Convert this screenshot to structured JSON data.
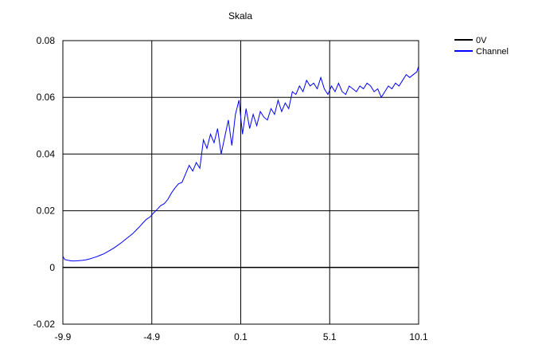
{
  "chart_data": {
    "type": "line",
    "title": "Skala",
    "xlabel": "",
    "ylabel": "",
    "xlim": [
      -9.9,
      10.1
    ],
    "ylim": [
      -0.02,
      0.08
    ],
    "x_ticks": [
      "-9.9",
      "-4.9",
      "0.1",
      "5.1",
      "10.1"
    ],
    "x_tick_values": [
      -9.9,
      -4.9,
      0.1,
      5.1,
      10.1
    ],
    "y_ticks": [
      "-0.02",
      "0",
      "0.02",
      "0.04",
      "0.06",
      "0.08"
    ],
    "y_tick_values": [
      -0.02,
      0,
      0.02,
      0.04,
      0.06,
      0.08
    ],
    "grid": true,
    "legend_position": "top-right",
    "series": [
      {
        "name": "0V",
        "color": "#000000",
        "x": [
          -9.9,
          10.1
        ],
        "y": [
          0,
          0
        ]
      },
      {
        "name": "Channel",
        "color": "#0000ff",
        "x": [
          -9.9,
          -9.8,
          -9.6,
          -9.4,
          -9.2,
          -9.0,
          -8.8,
          -8.6,
          -8.4,
          -8.2,
          -8.0,
          -7.8,
          -7.6,
          -7.4,
          -7.2,
          -7.0,
          -6.8,
          -6.6,
          -6.4,
          -6.2,
          -6.0,
          -5.8,
          -5.6,
          -5.4,
          -5.2,
          -5.0,
          -4.8,
          -4.6,
          -4.4,
          -4.2,
          -4.0,
          -3.8,
          -3.6,
          -3.4,
          -3.2,
          -3.0,
          -2.8,
          -2.6,
          -2.4,
          -2.2,
          -2.0,
          -1.8,
          -1.6,
          -1.4,
          -1.2,
          -1.0,
          -0.8,
          -0.6,
          -0.4,
          -0.2,
          0.0,
          0.2,
          0.4,
          0.6,
          0.8,
          1.0,
          1.2,
          1.4,
          1.6,
          1.8,
          2.0,
          2.2,
          2.4,
          2.6,
          2.8,
          3.0,
          3.2,
          3.4,
          3.6,
          3.8,
          4.0,
          4.2,
          4.4,
          4.6,
          4.8,
          5.0,
          5.2,
          5.4,
          5.6,
          5.8,
          6.0,
          6.2,
          6.4,
          6.6,
          6.8,
          7.0,
          7.2,
          7.4,
          7.6,
          7.8,
          8.0,
          8.2,
          8.4,
          8.6,
          8.8,
          9.0,
          9.2,
          9.4,
          9.6,
          9.8,
          10.0,
          10.1
        ],
        "y": [
          0.004,
          0.0028,
          0.0025,
          0.0023,
          0.0023,
          0.0024,
          0.0025,
          0.0027,
          0.003,
          0.0034,
          0.0038,
          0.0043,
          0.0048,
          0.0055,
          0.0062,
          0.007,
          0.0079,
          0.0088,
          0.0098,
          0.0108,
          0.0118,
          0.013,
          0.0143,
          0.0157,
          0.017,
          0.0178,
          0.0192,
          0.0205,
          0.0218,
          0.0225,
          0.024,
          0.0262,
          0.028,
          0.0295,
          0.03,
          0.033,
          0.036,
          0.034,
          0.037,
          0.035,
          0.045,
          0.042,
          0.047,
          0.044,
          0.049,
          0.04,
          0.046,
          0.052,
          0.043,
          0.054,
          0.059,
          0.047,
          0.056,
          0.049,
          0.054,
          0.05,
          0.055,
          0.053,
          0.052,
          0.056,
          0.054,
          0.059,
          0.055,
          0.058,
          0.056,
          0.062,
          0.061,
          0.064,
          0.062,
          0.066,
          0.064,
          0.065,
          0.063,
          0.067,
          0.063,
          0.061,
          0.064,
          0.062,
          0.065,
          0.062,
          0.061,
          0.064,
          0.063,
          0.062,
          0.064,
          0.063,
          0.065,
          0.064,
          0.062,
          0.063,
          0.06,
          0.062,
          0.064,
          0.063,
          0.065,
          0.064,
          0.066,
          0.068,
          0.067,
          0.068,
          0.069,
          0.071
        ]
      }
    ]
  }
}
